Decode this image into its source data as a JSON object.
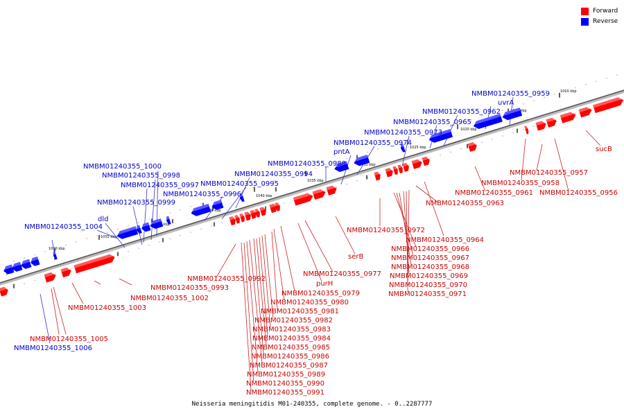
{
  "legend": {
    "forward": {
      "label": "Forward",
      "color": "#ff0000"
    },
    "reverse": {
      "label": "Reverse",
      "color": "#0000ff"
    }
  },
  "caption": "Neisseria meningitidis M01-240355, complete genome. - 0..2287777",
  "scale_labels": [
    "1010 kbp",
    "1015 kbp",
    "1020 kbp",
    "1025 kbp",
    "1030 kbp",
    "1035 kbp",
    "1040 kbp",
    "1045 kbp",
    "1050 kbp",
    "1055 kbp",
    "1060 kbp"
  ],
  "reverse_labels": [
    "NMBM01240355_0959",
    "uvrA",
    "NMBM01240355_0962",
    "NMBM01240355_0965",
    "NMBM01240355_0973",
    "NMBM01240355_0974",
    "pntA",
    "NMBM01240355_0988",
    "NMBM01240355_0994",
    "NMBM01240355_0995",
    "NMBM01240355_0996",
    "NMBM01240355_1000",
    "NMBM01240355_0998",
    "NMBM01240355_0997",
    "NMBM01240355_0999",
    "dld",
    "NMBM01240355_1004",
    "NMBM01240355_1006"
  ],
  "forward_labels": [
    "sucB",
    "NMBM01240355_0957",
    "NMBM01240355_0958",
    "NMBM01240355_0956",
    "NMBM01240355_0961",
    "NMBM01240355_0963",
    "NMBM01240355_0964",
    "NMBM01240355_0972",
    "NMBM01240355_0966",
    "NMBM01240355_0967",
    "NMBM01240355_0968",
    "NMBM01240355_0969",
    "NMBM01240355_0970",
    "NMBM01240355_0971",
    "serB",
    "NMBM01240355_0977",
    "purH",
    "NMBM01240355_0979",
    "NMBM01240355_0980",
    "NMBM01240355_0981",
    "NMBM01240355_0982",
    "NMBM01240355_0983",
    "NMBM01240355_0984",
    "NMBM01240355_0985",
    "NMBM01240355_0986",
    "NMBM01240355_0987",
    "NMBM01240355_0989",
    "NMBM01240355_0990",
    "NMBM01240355_0991",
    "NMBM01240355_0992",
    "NMBM01240355_0993",
    "NMBM01240355_1002",
    "NMBM01240355_1003",
    "NMBM01240355_1005"
  ]
}
